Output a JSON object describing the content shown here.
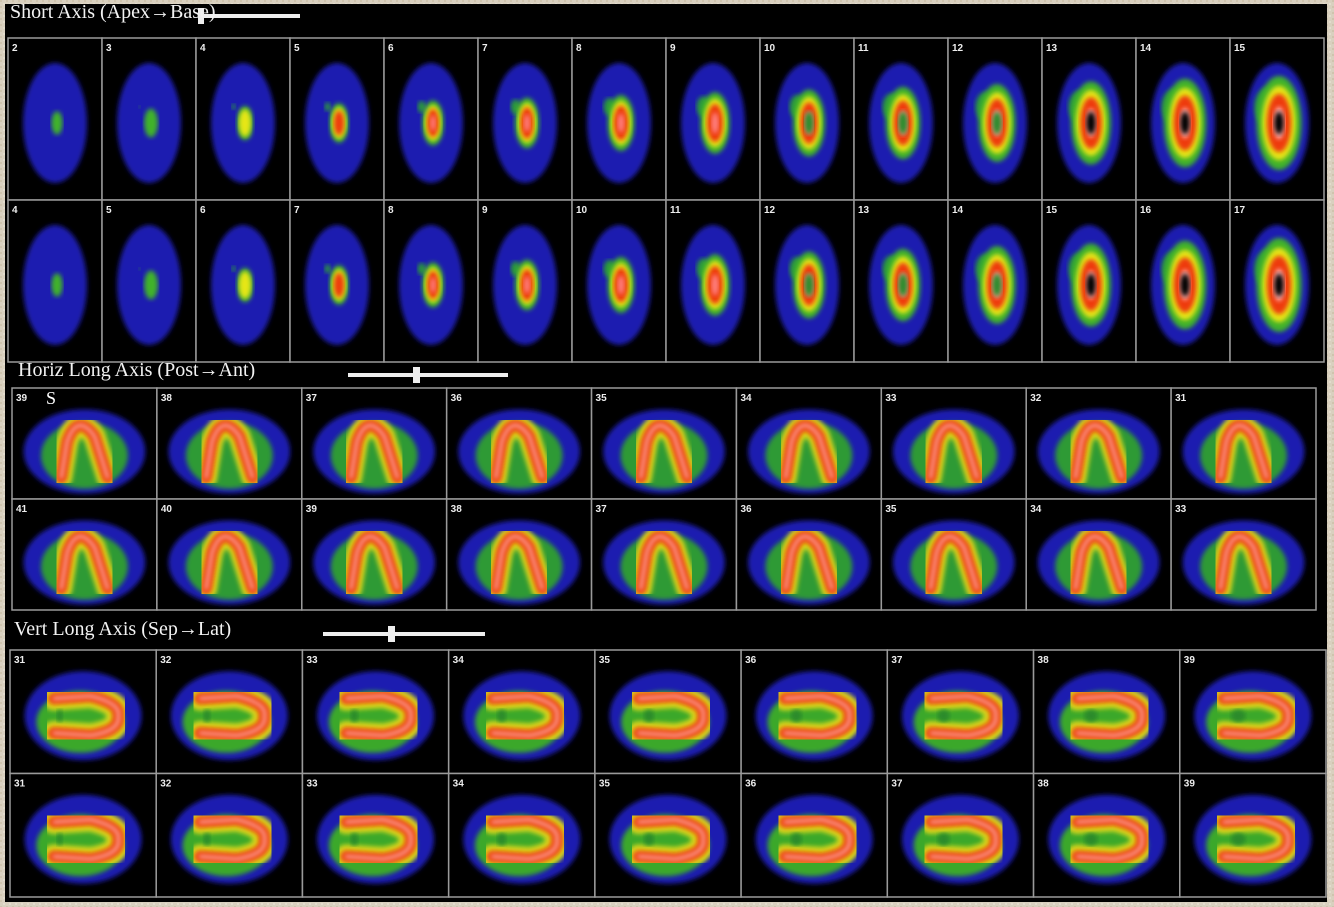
{
  "sections": [
    {
      "title": "Short Axis (Apex→Base)",
      "rows": [
        [
          "2",
          "3",
          "4",
          "5",
          "6",
          "7",
          "8",
          "9",
          "10",
          "11",
          "12",
          "13",
          "14",
          "15"
        ],
        [
          "4",
          "5",
          "6",
          "7",
          "8",
          "9",
          "10",
          "11",
          "12",
          "13",
          "14",
          "15",
          "16",
          "17"
        ]
      ]
    },
    {
      "title": "Horiz Long Axis (Post→Ant)",
      "annotation": "S",
      "rows": [
        [
          "39",
          "38",
          "37",
          "36",
          "35",
          "34",
          "33",
          "32",
          "31"
        ],
        [
          "41",
          "40",
          "39",
          "38",
          "37",
          "36",
          "35",
          "34",
          "33"
        ]
      ]
    },
    {
      "title": "Vert Long Axis (Sep→Lat)",
      "rows": [
        [
          "31",
          "32",
          "33",
          "34",
          "35",
          "36",
          "37",
          "38",
          "39"
        ],
        [
          "31",
          "32",
          "33",
          "34",
          "35",
          "36",
          "37",
          "38",
          "39"
        ]
      ]
    }
  ]
}
